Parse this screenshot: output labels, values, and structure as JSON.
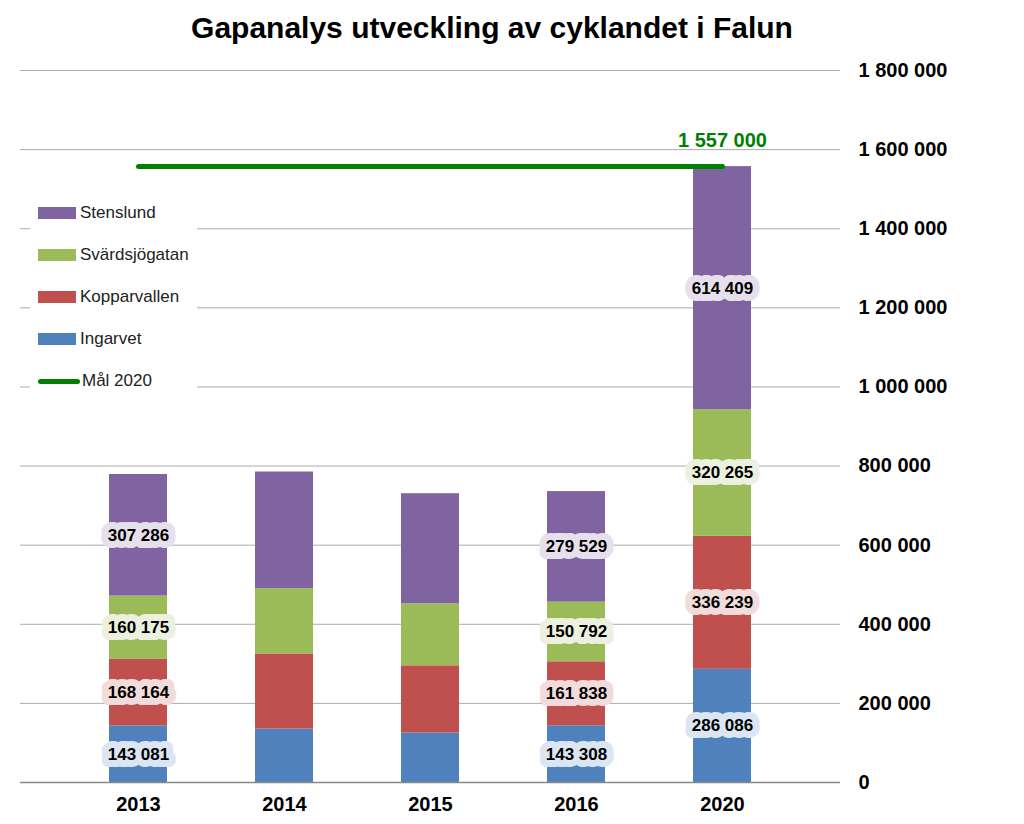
{
  "chart_data": {
    "type": "bar",
    "title": "Gapanalys utveckling av cyklandet i Falun",
    "stacked": true,
    "data_labels": true,
    "grid": true,
    "legend": "top-left",
    "categories": [
      "2013",
      "2014",
      "2015",
      "2016",
      "2020"
    ],
    "ylim": [
      0,
      1800000
    ],
    "yticks": [
      0,
      {
        "value": 200000,
        "label": "200 000"
      },
      {
        "value": 400000,
        "label": "400 000"
      },
      {
        "value": 600000,
        "label": "600 000"
      },
      {
        "value": 800000,
        "label": "800 000"
      },
      {
        "value": 1000000,
        "label": "1 000 000"
      },
      {
        "value": 1200000,
        "label": "1 200 000"
      },
      {
        "value": 1400000,
        "label": "1 400 000"
      },
      {
        "value": 1600000,
        "label": "1 600 000"
      },
      {
        "value": 1800000,
        "label": "1 800 000"
      }
    ],
    "series": [
      {
        "name": "Ingarvet",
        "color": "#4F81BD",
        "values": [
          143081,
          135000,
          125000,
          143308,
          286086
        ],
        "value_labels": [
          "143 081",
          null,
          null,
          "143 308",
          "286 086"
        ]
      },
      {
        "name": "Kopparvallen",
        "color": "#C0504D",
        "values": [
          168164,
          190000,
          170000,
          161838,
          336239
        ],
        "value_labels": [
          "168 164",
          null,
          null,
          "161 838",
          "336 239"
        ]
      },
      {
        "name": "Svärdsjögatan",
        "color": "#9BBB59",
        "values": [
          160175,
          165000,
          157000,
          150792,
          320265
        ],
        "value_labels": [
          "160 175",
          null,
          null,
          "150 792",
          "320 265"
        ]
      },
      {
        "name": "Stenslund",
        "color": "#8064A2",
        "values": [
          307286,
          295000,
          278000,
          279529,
          614409
        ],
        "value_labels": [
          "307 286",
          null,
          null,
          "279 529",
          "614 409"
        ]
      },
      {
        "name": "Mål 2020",
        "type": "line",
        "color": "#008000",
        "values": [
          1557000,
          1557000,
          1557000,
          1557000,
          1557000
        ],
        "value_labels": [
          null,
          null,
          null,
          null,
          "1 557 000"
        ]
      }
    ]
  }
}
